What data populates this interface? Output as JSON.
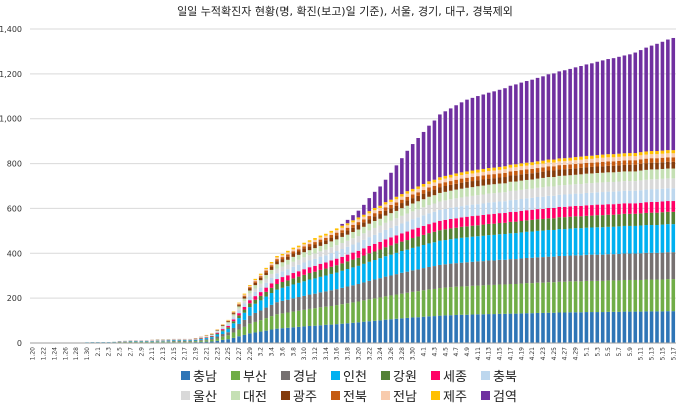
{
  "chart_data": {
    "type": "bar",
    "stacked": true,
    "title": "일일 누적확진자 현황(명, 확진(보고)일 기준), 서울, 경기, 대구, 경북제외",
    "xlabel": "",
    "ylabel": "",
    "ylim": [
      0,
      1400
    ],
    "yticks": [
      0,
      200,
      400,
      600,
      800,
      1000,
      1200,
      1400
    ],
    "yticklabels": [
      "0",
      "200",
      "400",
      "600",
      "800",
      "1,000",
      "1,200",
      "1,400"
    ],
    "grid": true,
    "legend_position": "bottom",
    "start_month": 1,
    "start_day": 20,
    "num_days": 119,
    "x_label_every": 2,
    "growth_knots": [
      [
        0,
        0
      ],
      [
        10,
        0.004
      ],
      [
        20,
        0.015
      ],
      [
        30,
        0.025
      ],
      [
        33,
        0.05
      ],
      [
        36,
        0.12
      ],
      [
        40,
        0.3
      ],
      [
        45,
        0.45
      ],
      [
        50,
        0.52
      ],
      [
        55,
        0.58
      ],
      [
        60,
        0.65
      ],
      [
        65,
        0.73
      ],
      [
        70,
        0.8
      ],
      [
        75,
        0.86
      ],
      [
        80,
        0.89
      ],
      [
        85,
        0.91
      ],
      [
        90,
        0.93
      ],
      [
        95,
        0.95
      ],
      [
        100,
        0.965
      ],
      [
        105,
        0.975
      ],
      [
        110,
        0.985
      ],
      [
        118,
        1.0
      ]
    ],
    "gumyeok_knots": [
      [
        0,
        0
      ],
      [
        56,
        0
      ],
      [
        60,
        30
      ],
      [
        65,
        100
      ],
      [
        70,
        200
      ],
      [
        75,
        280
      ],
      [
        80,
        320
      ],
      [
        85,
        340
      ],
      [
        90,
        360
      ],
      [
        95,
        380
      ],
      [
        100,
        400
      ],
      [
        105,
        420
      ],
      [
        110,
        440
      ],
      [
        114,
        470
      ],
      [
        118,
        500
      ]
    ],
    "series": [
      {
        "name": "충남",
        "color": "#2e75b6",
        "final": 142
      },
      {
        "name": "부산",
        "color": "#70ad47",
        "final": 143
      },
      {
        "name": "경남",
        "color": "#767171",
        "final": 120
      },
      {
        "name": "인천",
        "color": "#00b0f0",
        "final": 125
      },
      {
        "name": "강원",
        "color": "#548235",
        "final": 55
      },
      {
        "name": "세종",
        "color": "#ff0066",
        "final": 48
      },
      {
        "name": "충북",
        "color": "#bdd7ee",
        "final": 57
      },
      {
        "name": "울산",
        "color": "#d9d9d9",
        "final": 44
      },
      {
        "name": "대전",
        "color": "#c5e0b4",
        "final": 44
      },
      {
        "name": "광주",
        "color": "#843c0c",
        "final": 30
      },
      {
        "name": "전북",
        "color": "#c55a11",
        "final": 20
      },
      {
        "name": "전남",
        "color": "#f8cbad",
        "final": 18
      },
      {
        "name": "제주",
        "color": "#ffc000",
        "final": 14
      },
      {
        "name": "검역",
        "color": "#7030a0",
        "final": 500
      }
    ]
  }
}
